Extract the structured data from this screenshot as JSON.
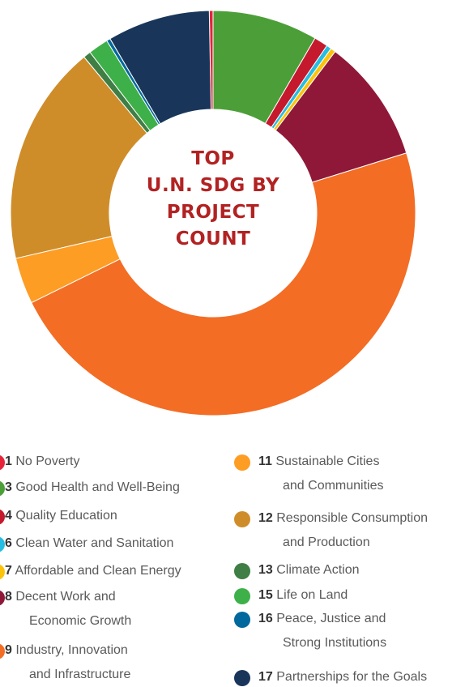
{
  "chart_data": {
    "type": "pie",
    "donut": true,
    "title_lines": [
      "TOP",
      "U.N. SDG BY",
      "PROJECT",
      "COUNT"
    ],
    "slices": [
      {
        "goal": "1",
        "label": "No Poverty",
        "value": 0.3,
        "color": "#e5243b"
      },
      {
        "goal": "17",
        "label": "Partnerships for the Goals",
        "value": 8.2,
        "color": "#19365a"
      },
      {
        "goal": "16",
        "label": "Peace, Justice and Strong Institutions",
        "value": 0.3,
        "color": "#00689d"
      },
      {
        "goal": "15",
        "label": "Life on Land",
        "value": 1.6,
        "color": "#3eb049"
      },
      {
        "goal": "13",
        "label": "Climate Action",
        "value": 0.6,
        "color": "#3f7e44"
      },
      {
        "goal": "12",
        "label": "Responsible Consumption and Production",
        "value": 17.6,
        "color": "#cf8d2a"
      },
      {
        "goal": "11",
        "label": "Sustainable Cities and Communities",
        "value": 3.7,
        "color": "#fd9d24"
      },
      {
        "goal": "9",
        "label": "Industry, Innovation and Infrastructure",
        "value": 47.5,
        "color": "#f36d25"
      },
      {
        "goal": "8",
        "label": "Decent Work and Economic Growth",
        "value": 9.9,
        "color": "#8f1838"
      },
      {
        "goal": "7",
        "label": "Affordable and Clean Energy",
        "value": 0.4,
        "color": "#fcc30b"
      },
      {
        "goal": "6",
        "label": "Clean Water and Sanitation",
        "value": 0.4,
        "color": "#26bde2"
      },
      {
        "goal": "4",
        "label": "Quality Education",
        "value": 1.1,
        "color": "#c5192d"
      },
      {
        "goal": "3",
        "label": "Good Health and Well-Being",
        "value": 8.4,
        "color": "#4c9f38"
      }
    ]
  },
  "legend": {
    "left": [
      {
        "num": "1",
        "line1": "No Poverty",
        "line2": "",
        "color": "#e5243b"
      },
      {
        "num": "3",
        "line1": "Good Health and Well-Being",
        "line2": "",
        "color": "#4c9f38"
      },
      {
        "num": "4",
        "line1": "Quality Education",
        "line2": "",
        "color": "#c5192d"
      },
      {
        "num": "6",
        "line1": "Clean Water and Sanitation",
        "line2": "",
        "color": "#26bde2"
      },
      {
        "num": "7",
        "line1": "Affordable and Clean Energy",
        "line2": "",
        "color": "#fcc30b"
      },
      {
        "num": "8",
        "line1": "Decent Work and",
        "line2": "Economic Growth",
        "color": "#8f1838"
      },
      {
        "num": "9",
        "line1": "Industry, Innovation",
        "line2": "and Infrastructure",
        "color": "#f36d25"
      }
    ],
    "right": [
      {
        "num": "11",
        "line1": "Sustainable Cities",
        "line2": "and Communities",
        "color": "#fd9d24"
      },
      {
        "num": "12",
        "line1": "Responsible Consumption",
        "line2": "and Production",
        "color": "#cf8d2a"
      },
      {
        "num": "13",
        "line1": "Climate Action",
        "line2": "",
        "color": "#3f7e44"
      },
      {
        "num": "15",
        "line1": "Life on Land",
        "line2": "",
        "color": "#3eb049"
      },
      {
        "num": "16",
        "line1": "Peace, Justice and",
        "line2": "Strong Institutions",
        "color": "#00689d"
      },
      {
        "num": "17",
        "line1": "Partnerships for the Goals",
        "line2": "",
        "color": "#19365a"
      }
    ]
  }
}
